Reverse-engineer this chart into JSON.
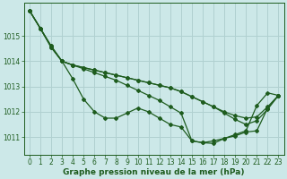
{
  "xlabel": "Graphe pression niveau de la mer (hPa)",
  "bg_color": "#cce8e8",
  "line_color": "#1e5c1e",
  "grid_color": "#b0d0d0",
  "xlim": [
    -0.5,
    23.5
  ],
  "ylim": [
    1010.3,
    1016.3
  ],
  "yticks": [
    1011,
    1012,
    1013,
    1014,
    1015
  ],
  "xticks": [
    0,
    1,
    2,
    3,
    4,
    5,
    6,
    7,
    8,
    9,
    10,
    11,
    12,
    13,
    14,
    15,
    16,
    17,
    18,
    19,
    20,
    21,
    22,
    23
  ],
  "series": [
    [
      1016.0,
      1015.3,
      1014.6,
      1014.0,
      1013.3,
      1012.5,
      1012.0,
      1011.75,
      1011.75,
      1011.95,
      1012.15,
      1012.0,
      1011.75,
      1011.5,
      1011.4,
      1010.85,
      1010.78,
      1010.85,
      1010.95,
      1011.1,
      1011.25,
      1012.25,
      1012.75,
      1012.65
    ],
    [
      1016.0,
      1015.3,
      1014.6,
      1014.0,
      1013.85,
      1013.75,
      1013.65,
      1013.55,
      1013.45,
      1013.35,
      1013.25,
      1013.15,
      1013.05,
      1012.95,
      1012.8,
      1012.6,
      1012.4,
      1012.2,
      1012.0,
      1011.85,
      1011.75,
      1011.8,
      1012.2,
      1012.65
    ],
    [
      1016.0,
      1015.3,
      1014.55,
      1014.0,
      1013.85,
      1013.75,
      1013.65,
      1013.55,
      1013.45,
      1013.35,
      1013.25,
      1013.15,
      1013.05,
      1012.95,
      1012.8,
      1012.6,
      1012.4,
      1012.2,
      1011.95,
      1011.7,
      1011.5,
      1011.65,
      1012.1,
      1012.65
    ],
    [
      1016.0,
      1015.3,
      1014.55,
      1014.0,
      1013.85,
      1013.7,
      1013.55,
      1013.4,
      1013.25,
      1013.05,
      1012.85,
      1012.65,
      1012.45,
      1012.2,
      1011.95,
      1010.85,
      1010.78,
      1010.75,
      1010.95,
      1011.05,
      1011.2,
      1011.25,
      1012.15,
      1012.65
    ]
  ],
  "marker": "D",
  "markersize": 2.0,
  "linewidth": 0.9,
  "tick_fontsize": 5.5,
  "label_fontsize": 6.5
}
